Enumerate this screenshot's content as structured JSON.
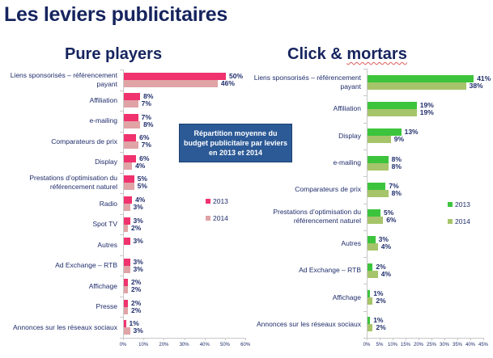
{
  "page": {
    "title": "Les leviers publicitaires",
    "note": "Répartition moyenne du budget publicitaire par leviers en 2013 et 2014"
  },
  "colors": {
    "left_2013": "#f0326e",
    "left_2014": "#e0a3a6",
    "right_2013": "#3dc43d",
    "right_2014": "#a6c46a"
  },
  "chart_data": [
    {
      "type": "bar",
      "orientation": "horizontal",
      "title": "Pure players",
      "categories": [
        "Liens sponsorisés – référencement payant",
        "Affiliation",
        "e-mailing",
        "Comparateurs de prix",
        "Display",
        "Prestations d'optimisation du référencement naturel",
        "Radio",
        "Spot TV",
        "Autres",
        "Ad Exchange – RTB",
        "Affichage",
        "Presse",
        "Annonces sur les réseaux sociaux"
      ],
      "series": [
        {
          "name": "2013",
          "values": [
            50,
            8,
            7,
            6,
            6,
            5,
            4,
            3,
            3,
            3,
            2,
            2,
            1
          ]
        },
        {
          "name": "2014",
          "values": [
            46,
            7,
            8,
            7,
            4,
            5,
            3,
            2,
            null,
            3,
            2,
            2,
            3
          ]
        }
      ],
      "xticks": [
        "0%",
        "10%",
        "20%",
        "30%",
        "40%",
        "50%",
        "60%"
      ],
      "xlim": [
        0,
        60
      ],
      "legend": [
        "2013",
        "2014"
      ],
      "legend_position": "right",
      "grid": false
    },
    {
      "type": "bar",
      "orientation": "horizontal",
      "title": "Click & mortars",
      "categories": [
        "Liens sponsorisés – référencement payant",
        "Affiliation",
        "Display",
        "e-mailing",
        "Comparateurs de prix",
        "Prestations d'optimisation du référencement naturel",
        "Autres",
        "Ad Exchange – RTB",
        "Affichage",
        "Annonces sur les réseaux sociaux"
      ],
      "series": [
        {
          "name": "2013",
          "values": [
            41,
            19,
            13,
            8,
            7,
            5,
            3,
            2,
            1,
            1
          ]
        },
        {
          "name": "2014",
          "values": [
            38,
            19,
            9,
            8,
            8,
            6,
            4,
            4,
            2,
            2
          ]
        }
      ],
      "xticks": [
        "0%",
        "5%",
        "10%",
        "15%",
        "20%",
        "25%",
        "30%",
        "35%",
        "40%",
        "45%"
      ],
      "xlim": [
        0,
        45
      ],
      "legend": [
        "2013",
        "2014"
      ],
      "legend_position": "right",
      "grid": false
    }
  ],
  "left": {
    "title": "Pure players",
    "labels": [
      [
        "Liens sponsorisés – référencement",
        "payant"
      ],
      [
        "Affiliation"
      ],
      [
        "e-mailing"
      ],
      [
        "Comparateurs de prix"
      ],
      [
        "Display"
      ],
      [
        "Prestations d’optimisation du",
        "référencement naturel"
      ],
      [
        "Radio"
      ],
      [
        "Spot TV"
      ],
      [
        "Autres"
      ],
      [
        "Ad Exchange – RTB"
      ],
      [
        "Affichage"
      ],
      [
        "Presse"
      ],
      [
        "Annonces sur les réseaux sociaux"
      ]
    ],
    "v2013": [
      50,
      8,
      7,
      6,
      6,
      5,
      4,
      3,
      3,
      3,
      2,
      2,
      1
    ],
    "v2014": [
      46,
      7,
      8,
      7,
      4,
      5,
      3,
      2,
      null,
      3,
      2,
      2,
      3
    ],
    "xticks": [
      "0%",
      "10%",
      "20%",
      "30%",
      "40%",
      "50%",
      "60%"
    ],
    "legend_2013": "2013",
    "legend_2014": "2014"
  },
  "right": {
    "title_a": "Click & ",
    "title_b": "mortars",
    "labels": [
      [
        "Liens sponsorisés – référencement",
        "payant"
      ],
      [
        "Affiliation"
      ],
      [
        "Display"
      ],
      [
        "e-mailing"
      ],
      [
        "Comparateurs de prix"
      ],
      [
        "Prestations d’optimisation du",
        "référencement naturel"
      ],
      [
        "Autres"
      ],
      [
        "Ad Exchange – RTB"
      ],
      [
        "Affichage"
      ],
      [
        "Annonces sur les réseaux sociaux"
      ]
    ],
    "v2013": [
      41,
      19,
      13,
      8,
      7,
      5,
      3,
      2,
      1,
      1
    ],
    "v2014": [
      38,
      19,
      9,
      8,
      8,
      6,
      4,
      4,
      2,
      2
    ],
    "xticks": [
      "0%",
      "5%",
      "10%",
      "15%",
      "20%",
      "25%",
      "30%",
      "35%",
      "40%",
      "45%"
    ],
    "legend_2013": "2013",
    "legend_2014": "2014"
  }
}
